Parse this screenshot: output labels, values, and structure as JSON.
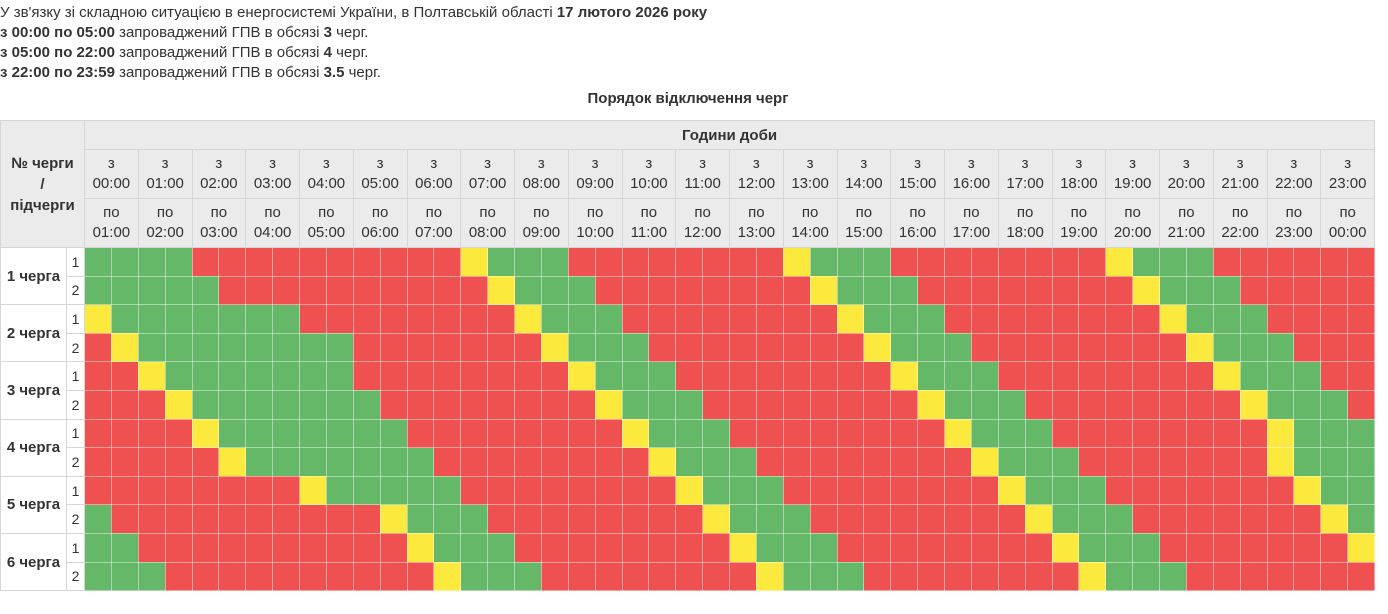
{
  "notice": {
    "lines": [
      [
        {
          "text": "У зв'язку зі складною ситуацією в енергосистемі України, в Полтавській області ",
          "bold": false
        },
        {
          "text": "17 лютого 2026 року",
          "bold": true
        }
      ],
      [
        {
          "text": "з 00:00 по 05:00",
          "bold": true
        },
        {
          "text": " запроваджений ГПВ в обсязі ",
          "bold": false
        },
        {
          "text": "3",
          "bold": true
        },
        {
          "text": " черг.",
          "bold": false
        }
      ],
      [
        {
          "text": "з 05:00 по 22:00",
          "bold": true
        },
        {
          "text": " запроваджений ГПВ в обсязі ",
          "bold": false
        },
        {
          "text": "4",
          "bold": true
        },
        {
          "text": " черг.",
          "bold": false
        }
      ],
      [
        {
          "text": "з 22:00 по 23:59",
          "bold": true
        },
        {
          "text": " запроваджений ГПВ в обсязі ",
          "bold": false
        },
        {
          "text": "3.5",
          "bold": true
        },
        {
          "text": " черг.",
          "bold": false
        }
      ]
    ]
  },
  "table": {
    "title": "Порядок відключення черг",
    "corner": "№ черги / підчерги",
    "hours_header": "Години доби",
    "from": [
      "з 00:00",
      "з 01:00",
      "з 02:00",
      "з 03:00",
      "з 04:00",
      "з 05:00",
      "з 06:00",
      "з 07:00",
      "з 08:00",
      "з 09:00",
      "з 10:00",
      "з 11:00",
      "з 12:00",
      "з 13:00",
      "з 14:00",
      "з 15:00",
      "з 16:00",
      "з 17:00",
      "з 18:00",
      "з 19:00",
      "з 20:00",
      "з 21:00",
      "з 22:00",
      "з 23:00"
    ],
    "to": [
      "по 01:00",
      "по 02:00",
      "по 03:00",
      "по 04:00",
      "по 05:00",
      "по 06:00",
      "по 07:00",
      "по 08:00",
      "по 09:00",
      "по 10:00",
      "по 11:00",
      "по 12:00",
      "по 13:00",
      "по 14:00",
      "по 15:00",
      "по 16:00",
      "по 17:00",
      "по 18:00",
      "по 19:00",
      "по 20:00",
      "по 21:00",
      "по 22:00",
      "по 23:00",
      "по 00:00"
    ],
    "groups": [
      {
        "label": "1 черга",
        "subs": [
          "1",
          "2"
        ]
      },
      {
        "label": "2 черга",
        "subs": [
          "1",
          "2"
        ]
      },
      {
        "label": "3 черга",
        "subs": [
          "1",
          "2"
        ]
      },
      {
        "label": "4 черга",
        "subs": [
          "1",
          "2"
        ]
      },
      {
        "label": "5 черга",
        "subs": [
          "1",
          "2"
        ]
      },
      {
        "label": "6 черга",
        "subs": [
          "1",
          "2"
        ]
      }
    ]
  }
}
